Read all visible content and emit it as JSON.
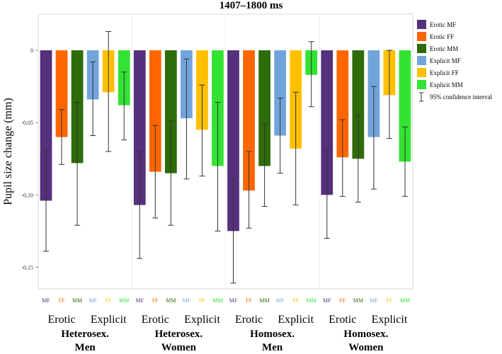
{
  "chart_data": {
    "type": "bar",
    "title": "1407–1800 ms",
    "ylabel": "Pupil size change (mm)",
    "ylim": [
      -0.165,
      0.025
    ],
    "yticks": [
      {
        "value": 0,
        "label": "0"
      },
      {
        "value": -0.05,
        "label": "-0,05"
      },
      {
        "value": -0.1,
        "label": "-0,10"
      },
      {
        "value": -0.15,
        "label": "-0,15"
      }
    ],
    "series": [
      {
        "name": "Erotic MF",
        "short": "MF",
        "color": "#55307d"
      },
      {
        "name": "Erotic FF",
        "short": "FF",
        "color": "#ff6600"
      },
      {
        "name": "Erotic MM",
        "short": "MM",
        "color": "#2e6b0a"
      },
      {
        "name": "Explicit MF",
        "short": "MF",
        "color": "#72a4dc"
      },
      {
        "name": "Explicit FF",
        "short": "FF",
        "color": "#ffc000"
      },
      {
        "name": "Explicit MM",
        "short": "MM",
        "color": "#33e333"
      }
    ],
    "ci_legend_label": "95% confidence interval",
    "groups": [
      {
        "label_line1": "Heterosex.",
        "label_line2": "Men",
        "sublabels": [
          "Erotic",
          "Explicit"
        ],
        "values": [
          -0.104,
          -0.06,
          -0.078,
          -0.034,
          -0.029,
          -0.038
        ],
        "ci_upper": [
          -0.069,
          -0.041,
          -0.036,
          -0.008,
          0.013,
          -0.015
        ],
        "ci_lower": [
          -0.139,
          -0.079,
          -0.121,
          -0.059,
          -0.07,
          -0.062
        ]
      },
      {
        "label_line1": "Heterosex.",
        "label_line2": "Women",
        "sublabels": [
          "Erotic",
          "Explicit"
        ],
        "values": [
          -0.107,
          -0.084,
          -0.085,
          -0.047,
          -0.055,
          -0.08
        ],
        "ci_upper": [
          -0.07,
          -0.052,
          -0.049,
          -0.006,
          -0.024,
          -0.036
        ],
        "ci_lower": [
          -0.144,
          -0.116,
          -0.121,
          -0.089,
          -0.087,
          -0.125
        ]
      },
      {
        "label_line1": "Homosex.",
        "label_line2": "Men",
        "sublabels": [
          "Erotic",
          "Explicit"
        ],
        "values": [
          -0.125,
          -0.097,
          -0.08,
          -0.059,
          -0.068,
          -0.017
        ],
        "ci_upper": [
          -0.089,
          -0.07,
          -0.051,
          -0.033,
          -0.029,
          0.006
        ],
        "ci_lower": [
          -0.161,
          -0.123,
          -0.108,
          -0.085,
          -0.107,
          -0.039
        ]
      },
      {
        "label_line1": "Homosex.",
        "label_line2": "Women",
        "sublabels": [
          "Erotic",
          "Explicit"
        ],
        "values": [
          -0.1,
          -0.074,
          -0.075,
          -0.06,
          -0.031,
          -0.077
        ],
        "ci_upper": [
          -0.069,
          -0.048,
          -0.045,
          -0.025,
          0.0,
          -0.053
        ],
        "ci_lower": [
          -0.13,
          -0.101,
          -0.105,
          -0.096,
          -0.061,
          -0.101
        ]
      }
    ]
  }
}
